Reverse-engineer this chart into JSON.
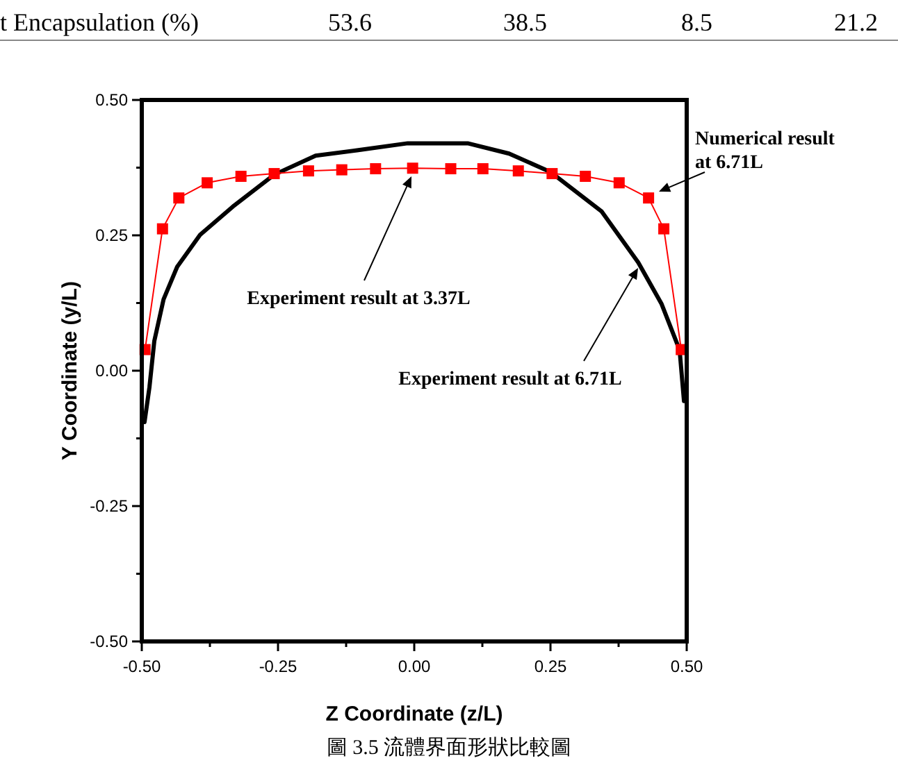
{
  "chart_data": {
    "type": "line",
    "title": "圖 3.5 流體界面形狀比較圖",
    "xlabel": "Z Coordinate (z/L)",
    "ylabel": "Y Coordinate (y/L)",
    "xlim": [
      -0.5,
      0.5
    ],
    "ylim": [
      -0.5,
      0.5
    ],
    "xticks": [
      {
        "value": -0.5,
        "label": "-0.50"
      },
      {
        "value": -0.375,
        "label": null
      },
      {
        "value": -0.25,
        "label": "-0.25"
      },
      {
        "value": -0.125,
        "label": null
      },
      {
        "value": 0,
        "label": "0.00"
      },
      {
        "value": 0.125,
        "label": null
      },
      {
        "value": 0.25,
        "label": "0.25"
      },
      {
        "value": 0.375,
        "label": null
      },
      {
        "value": 0.5,
        "label": "0.50"
      }
    ],
    "yticks": [
      {
        "value": -0.5,
        "label": "-0.50"
      },
      {
        "value": -0.375,
        "label": null
      },
      {
        "value": -0.25,
        "label": "-0.25"
      },
      {
        "value": -0.125,
        "label": null
      },
      {
        "value": 0,
        "label": "0.00"
      },
      {
        "value": 0.125,
        "label": null
      },
      {
        "value": 0.25,
        "label": "0.25"
      },
      {
        "value": 0.375,
        "label": null
      },
      {
        "value": 0.5,
        "label": "0.50"
      }
    ],
    "series": [
      {
        "color": "#000000",
        "marker": "none",
        "x": [
          -0.495,
          -0.486,
          -0.477,
          -0.46,
          -0.435,
          -0.393,
          -0.333,
          -0.257,
          -0.181,
          -0.105,
          -0.012,
          0.098,
          0.174,
          0.25,
          0.344,
          0.411,
          0.454,
          0.487,
          0.495
        ],
        "values": [
          -0.095,
          -0.031,
          0.055,
          0.132,
          0.192,
          0.251,
          0.303,
          0.362,
          0.397,
          0.407,
          0.42,
          0.42,
          0.401,
          0.367,
          0.294,
          0.2,
          0.123,
          0.038,
          -0.056
        ]
      },
      {
        "color": "#ff0000",
        "marker": "square",
        "x": [
          -0.494,
          -0.462,
          -0.432,
          -0.38,
          -0.318,
          -0.257,
          -0.194,
          -0.133,
          -0.071,
          -0.003,
          0.067,
          0.126,
          0.191,
          0.253,
          0.314,
          0.376,
          0.43,
          0.458,
          0.49
        ],
        "values": [
          0.039,
          0.262,
          0.319,
          0.347,
          0.359,
          0.364,
          0.369,
          0.371,
          0.373,
          0.374,
          0.373,
          0.373,
          0.369,
          0.364,
          0.359,
          0.347,
          0.319,
          0.262,
          0.039
        ]
      }
    ],
    "annotations": [
      "Experiment result at 3.37L",
      "Experiment result at 6.71L",
      "Numerical result at 6.71L",
      "t Encapsulation (%)",
      "53.6",
      "38.5",
      "8.5",
      "21.2"
    ]
  }
}
